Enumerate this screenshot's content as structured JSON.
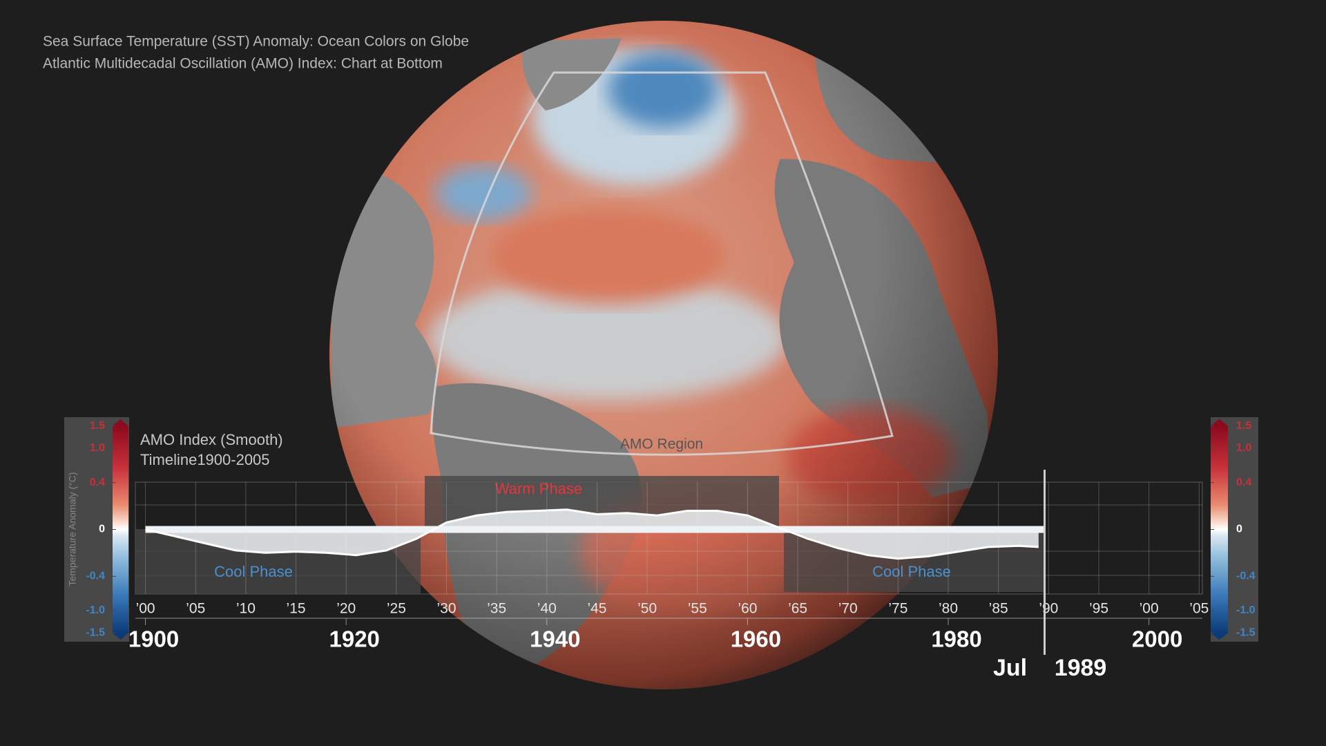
{
  "chart_data": {
    "type": "area",
    "title": "Sea Surface Temperature (SST) Anomaly: Ocean Colors on Globe",
    "subtitle": "Atlantic Multidecadal Oscillation (AMO) Index: Chart at Bottom",
    "chart_label": "AMO Index (Smooth)",
    "chart_sublabel": "Timeline1900-2005",
    "region_label": "AMO Region",
    "annotations": [
      "Cool Phase",
      "Warm Phase",
      "Cool Phase"
    ],
    "x": [
      1900,
      1903,
      1906,
      1909,
      1912,
      1915,
      1918,
      1921,
      1924,
      1927,
      1930,
      1933,
      1936,
      1939,
      1942,
      1945,
      1948,
      1951,
      1954,
      1957,
      1960,
      1963,
      1966,
      1969,
      1972,
      1975,
      1978,
      1981,
      1984,
      1987,
      1989
    ],
    "values": [
      0,
      -0.06,
      -0.12,
      -0.18,
      -0.2,
      -0.19,
      -0.2,
      -0.22,
      -0.18,
      -0.08,
      0.06,
      0.12,
      0.15,
      0.16,
      0.17,
      0.13,
      0.14,
      0.12,
      0.16,
      0.16,
      0.12,
      0.02,
      -0.08,
      -0.16,
      -0.22,
      -0.25,
      -0.23,
      -0.19,
      -0.15,
      -0.14,
      -0.15
    ],
    "color": "#eef2f5",
    "xlim": [
      1900,
      2005
    ],
    "ylim": [
      -0.5,
      0.5
    ],
    "xticks": [
      {
        "value": 1900,
        "label": "’00"
      },
      {
        "value": 1905,
        "label": "’05"
      },
      {
        "value": 1910,
        "label": "’10"
      },
      {
        "value": 1915,
        "label": "’15"
      },
      {
        "value": 1920,
        "label": "’20"
      },
      {
        "value": 1925,
        "label": "’25"
      },
      {
        "value": 1930,
        "label": "’30"
      },
      {
        "value": 1935,
        "label": "’35"
      },
      {
        "value": 1940,
        "label": "’40"
      },
      {
        "value": 1945,
        "label": "’45"
      },
      {
        "value": 1950,
        "label": "’50"
      },
      {
        "value": 1955,
        "label": "’55"
      },
      {
        "value": 1960,
        "label": "’60"
      },
      {
        "value": 1965,
        "label": "’65"
      },
      {
        "value": 1970,
        "label": "’70"
      },
      {
        "value": 1975,
        "label": "’75"
      },
      {
        "value": 1980,
        "label": "’80"
      },
      {
        "value": 1985,
        "label": "’85"
      },
      {
        "value": 1990,
        "label": "’90"
      },
      {
        "value": 1995,
        "label": "’95"
      },
      {
        "value": 2000,
        "label": "’00"
      },
      {
        "value": 2005,
        "label": "’05"
      }
    ],
    "major_xticks": [
      1900,
      1920,
      1940,
      1960,
      1980,
      2000
    ],
    "current": {
      "month": "Jul",
      "year": 1989
    },
    "colorbar": {
      "label": "Temperature Anomaly (°C)",
      "ticks": [
        1.5,
        {
          "value": 1,
          "label": "1.0"
        },
        0.4,
        0,
        -0.4,
        {
          "value": -1,
          "label": "-1.0"
        },
        -1.5
      ]
    }
  }
}
